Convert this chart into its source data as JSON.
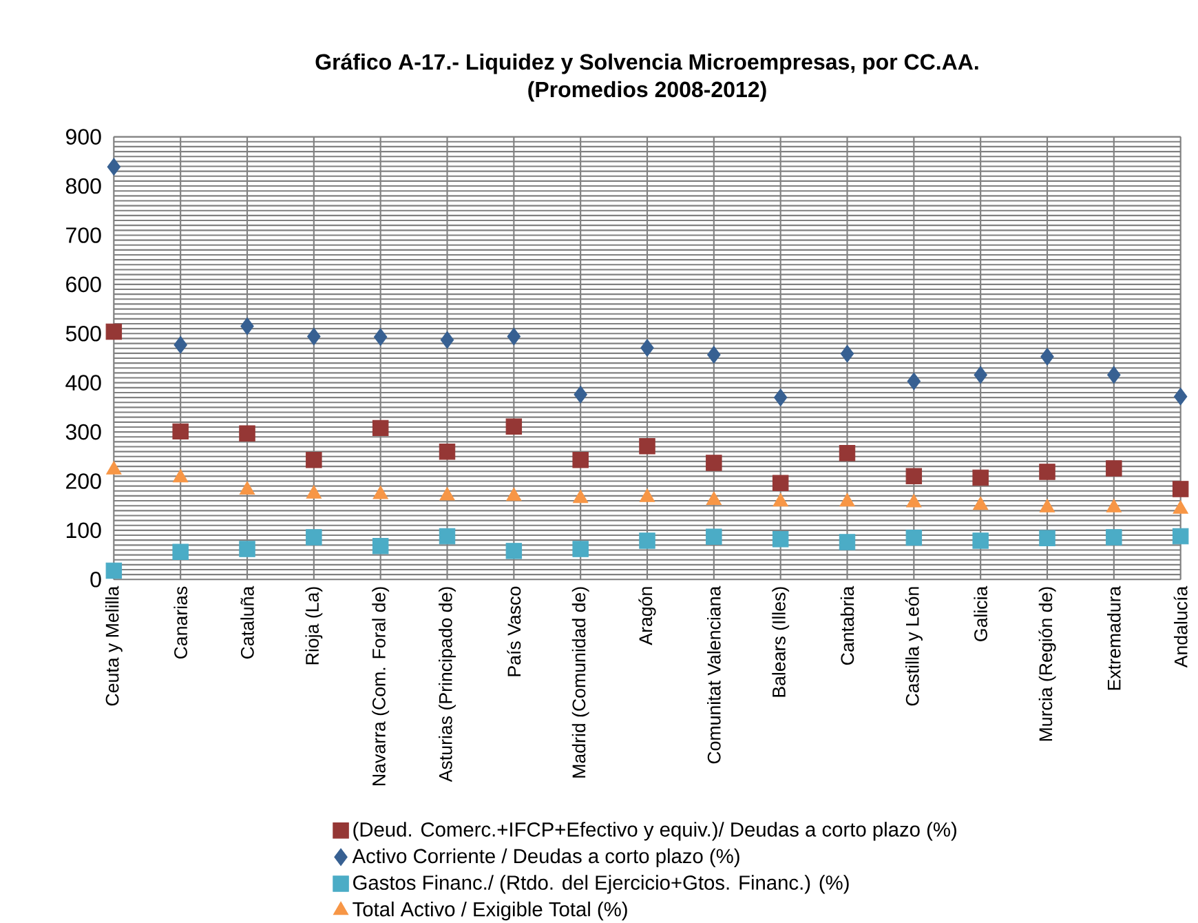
{
  "chart_data": {
    "type": "scatter",
    "title": "Gráfico A-17.- Liquidez y Solvencia Microempresas, por CC.AA.\n(Promedios 2008-2012)",
    "categories": [
      "Ceuta y Melilla",
      "Canarias",
      "Cataluña",
      "Rioja (La)",
      "Navarra (Com. Foral de)",
      "Asturias (Principado de)",
      "País Vasco",
      "Madrid (Comunidad de)",
      "Aragón",
      "Comunitat Valenciana",
      "Balears (Illes)",
      "Cantabria",
      "Castilla y León",
      "Galicia",
      "Murcia (Región de)",
      "Extremadura",
      "Andalucía"
    ],
    "series": [
      {
        "name": "(Deud. Comerc.+IFCP+Efectivo y equiv.)/ Deudas a corto plazo (%)",
        "color": "#953735",
        "marker": "square",
        "values": [
          504,
          301,
          297,
          243,
          308,
          260,
          311,
          243,
          271,
          237,
          196,
          257,
          210,
          207,
          219,
          226,
          184
        ]
      },
      {
        "name": "Activo Corriente / Deudas a corto plazo (%)",
        "color": "#376092",
        "marker": "diamond",
        "values": [
          839,
          477,
          515,
          494,
          493,
          487,
          494,
          376,
          471,
          457,
          370,
          459,
          403,
          416,
          453,
          416,
          372
        ]
      },
      {
        "name": "Gastos Financ./ (Rtdo. del Ejercicio+Gtos. Financ.) (%)",
        "color": "#4bacc6",
        "marker": "square",
        "values": [
          18,
          56,
          62,
          86,
          68,
          88,
          58,
          62,
          79,
          87,
          82,
          76,
          85,
          79,
          84,
          86,
          88
        ]
      },
      {
        "name": "Total Activo / Exigible Total (%)",
        "color": "#f79646",
        "marker": "triangle",
        "values": [
          223,
          207,
          182,
          174,
          173,
          170,
          169,
          165,
          167,
          161,
          158,
          158,
          156,
          151,
          146,
          146,
          143
        ]
      }
    ],
    "ylim": [
      0,
      900
    ],
    "yticks": [
      0,
      {
        "value": 10,
        "label": null
      },
      {
        "value": 20,
        "label": null
      },
      {
        "value": 30,
        "label": null
      },
      {
        "value": 40,
        "label": null
      },
      {
        "value": 50,
        "label": null
      },
      {
        "value": 60,
        "label": null
      },
      {
        "value": 70,
        "label": null
      },
      {
        "value": 80,
        "label": null
      },
      {
        "value": 90,
        "label": null
      },
      100,
      {
        "value": 110,
        "label": null
      },
      {
        "value": 120,
        "label": null
      },
      {
        "value": 130,
        "label": null
      },
      {
        "value": 140,
        "label": null
      },
      {
        "value": 150,
        "label": null
      },
      {
        "value": 160,
        "label": null
      },
      {
        "value": 170,
        "label": null
      },
      {
        "value": 180,
        "label": null
      },
      {
        "value": 190,
        "label": null
      },
      200,
      {
        "value": 210,
        "label": null
      },
      {
        "value": 220,
        "label": null
      },
      {
        "value": 230,
        "label": null
      },
      {
        "value": 240,
        "label": null
      },
      {
        "value": 250,
        "label": null
      },
      {
        "value": 260,
        "label": null
      },
      {
        "value": 270,
        "label": null
      },
      {
        "value": 280,
        "label": null
      },
      {
        "value": 290,
        "label": null
      },
      300,
      {
        "value": 310,
        "label": null
      },
      {
        "value": 320,
        "label": null
      },
      {
        "value": 330,
        "label": null
      },
      {
        "value": 340,
        "label": null
      },
      {
        "value": 350,
        "label": null
      },
      {
        "value": 360,
        "label": null
      },
      {
        "value": 370,
        "label": null
      },
      {
        "value": 380,
        "label": null
      },
      {
        "value": 390,
        "label": null
      },
      400,
      {
        "value": 410,
        "label": null
      },
      {
        "value": 420,
        "label": null
      },
      {
        "value": 430,
        "label": null
      },
      {
        "value": 440,
        "label": null
      },
      {
        "value": 450,
        "label": null
      },
      {
        "value": 460,
        "label": null
      },
      {
        "value": 470,
        "label": null
      },
      {
        "value": 480,
        "label": null
      },
      {
        "value": 490,
        "label": null
      },
      500,
      {
        "value": 510,
        "label": null
      },
      {
        "value": 520,
        "label": null
      },
      {
        "value": 530,
        "label": null
      },
      {
        "value": 540,
        "label": null
      },
      {
        "value": 550,
        "label": null
      },
      {
        "value": 560,
        "label": null
      },
      {
        "value": 570,
        "label": null
      },
      {
        "value": 580,
        "label": null
      },
      {
        "value": 590,
        "label": null
      },
      600,
      {
        "value": 610,
        "label": null
      },
      {
        "value": 620,
        "label": null
      },
      {
        "value": 630,
        "label": null
      },
      {
        "value": 640,
        "label": null
      },
      {
        "value": 650,
        "label": null
      },
      {
        "value": 660,
        "label": null
      },
      {
        "value": 670,
        "label": null
      },
      {
        "value": 680,
        "label": null
      },
      {
        "value": 690,
        "label": null
      },
      700,
      {
        "value": 710,
        "label": null
      },
      {
        "value": 720,
        "label": null
      },
      {
        "value": 730,
        "label": null
      },
      {
        "value": 740,
        "label": null
      },
      {
        "value": 750,
        "label": null
      },
      {
        "value": 760,
        "label": null
      },
      {
        "value": 770,
        "label": null
      },
      {
        "value": 780,
        "label": null
      },
      {
        "value": 790,
        "label": null
      },
      800,
      {
        "value": 810,
        "label": null
      },
      {
        "value": 820,
        "label": null
      },
      {
        "value": 830,
        "label": null
      },
      {
        "value": 840,
        "label": null
      },
      {
        "value": 850,
        "label": null
      },
      {
        "value": 860,
        "label": null
      },
      {
        "value": 870,
        "label": null
      },
      {
        "value": 880,
        "label": null
      },
      {
        "value": 890,
        "label": null
      },
      900
    ],
    "grid": true,
    "legend": "bottom"
  }
}
